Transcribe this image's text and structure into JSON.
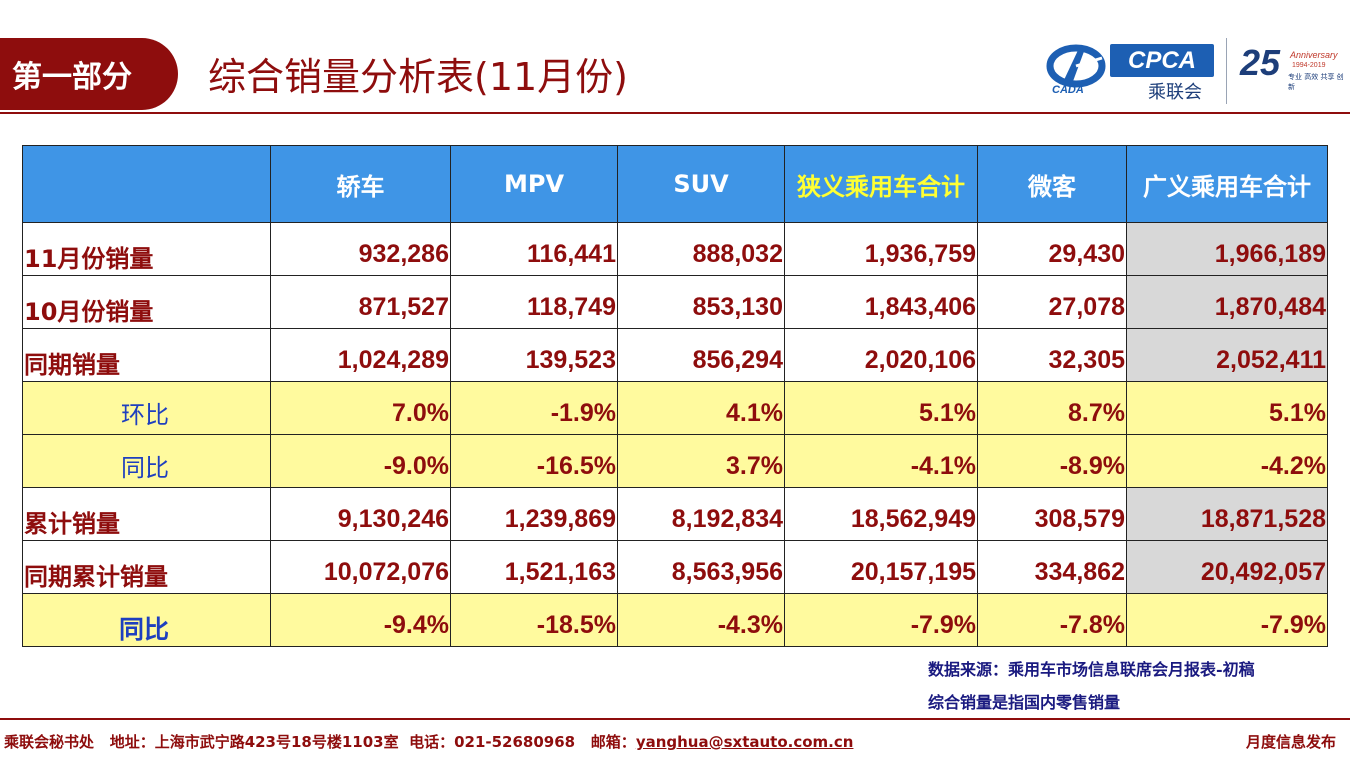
{
  "header": {
    "section": "第一部分",
    "title": "综合销量分析表(11月份)"
  },
  "logos": {
    "cada_text": "CADA",
    "cpca_text": "CPCA",
    "cpca_cn": "乘联会",
    "anniv_number": "25",
    "anniv_text": "Anniversary",
    "anniv_years": "1994-2019",
    "anniv_tagline": "专业 高效 共享 创新"
  },
  "table": {
    "columns": [
      "",
      "轿车",
      "MPV",
      "SUV",
      "狭义乘用车合计",
      "微客",
      "广义乘用车合计"
    ],
    "rows": [
      {
        "label": "11月份销量",
        "style": "plain",
        "values": [
          "932,286",
          "116,441",
          "888,032",
          "1,936,759",
          "29,430",
          "1,966,189"
        ]
      },
      {
        "label": "10月份销量",
        "style": "plain",
        "values": [
          "871,527",
          "118,749",
          "853,130",
          "1,843,406",
          "27,078",
          "1,870,484"
        ]
      },
      {
        "label": "同期销量",
        "style": "plain",
        "values": [
          "1,024,289",
          "139,523",
          "856,294",
          "2,020,106",
          "32,305",
          "2,052,411"
        ]
      },
      {
        "label": "环比",
        "style": "yellow",
        "values": [
          "7.0%",
          "-1.9%",
          "4.1%",
          "5.1%",
          "8.7%",
          "5.1%"
        ]
      },
      {
        "label": "同比",
        "style": "yellow",
        "values": [
          "-9.0%",
          "-16.5%",
          "3.7%",
          "-4.1%",
          "-8.9%",
          "-4.2%"
        ]
      },
      {
        "label": "累计销量",
        "style": "plain",
        "values": [
          "9,130,246",
          "1,239,869",
          "8,192,834",
          "18,562,949",
          "308,579",
          "18,871,528"
        ]
      },
      {
        "label": "同期累计销量",
        "style": "plain",
        "values": [
          "10,072,076",
          "1,521,163",
          "8,563,956",
          "20,157,195",
          "334,862",
          "20,492,057"
        ]
      },
      {
        "label": "同比",
        "style": "yellow",
        "values": [
          "-9.4%",
          "-18.5%",
          "-4.3%",
          "-7.9%",
          "-7.8%",
          "-7.9%"
        ]
      }
    ]
  },
  "notes": {
    "source": "数据来源：乘用车市场信息联席会月报表-初稿",
    "definition": "综合销量是指国内零售销量"
  },
  "footer": {
    "org": "乘联会秘书处",
    "address": "地址：上海市武宁路423号18号楼1103室",
    "phone": "电话：021-52680968",
    "email_label": "邮箱：",
    "email": "yanghua@sxtauto.com.cn",
    "right": "月度信息发布"
  }
}
